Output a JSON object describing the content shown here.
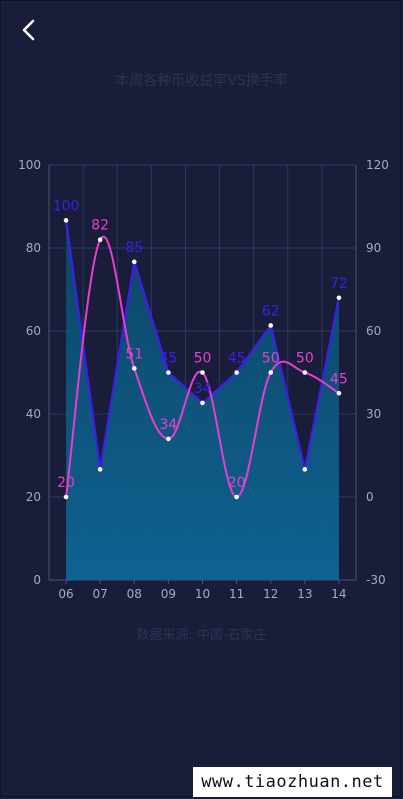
{
  "header": {
    "back_icon": "chevron-left-icon"
  },
  "chart_title": "本周各种币收益率VS换手率",
  "source_text": "数据来源: 中国-石家庄",
  "watermark": "www.tiaozhuan.net",
  "colors": {
    "background": "#1a1d3a",
    "grid": "#2c3a5c",
    "axis_text": "#a3a9c7",
    "series_blue": "#3d1ee8",
    "series_pink": "#e83ecf",
    "area_top": "#0b4a6b",
    "area_bottom": "#0d6390"
  },
  "chart_data": {
    "type": "line",
    "categories": [
      "06",
      "07",
      "08",
      "09",
      "10",
      "11",
      "12",
      "13",
      "14"
    ],
    "y_left": {
      "range": [
        0,
        100
      ],
      "ticks": [
        0,
        20,
        40,
        60,
        80,
        100
      ]
    },
    "y_right": {
      "range": [
        -30,
        120
      ],
      "ticks": [
        -30,
        0,
        30,
        60,
        90,
        120
      ]
    },
    "grid": true,
    "series": [
      {
        "axis": "right",
        "style": "straight-area",
        "color": "#3d1ee8",
        "values": [
          100,
          10,
          85,
          45,
          34,
          45,
          62,
          10,
          72
        ],
        "labels": [
          "100",
          "",
          "85",
          "45",
          "34",
          "45",
          "62",
          "",
          "72"
        ]
      },
      {
        "axis": "left",
        "style": "smooth",
        "color": "#e83ecf",
        "values": [
          20,
          82,
          51,
          34,
          50,
          20,
          50,
          50,
          45
        ],
        "labels": [
          "20",
          "82",
          "51",
          "34",
          "50",
          "20",
          "50",
          "50",
          "45"
        ]
      }
    ]
  }
}
